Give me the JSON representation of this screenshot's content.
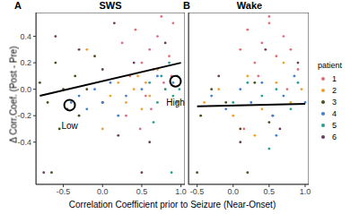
{
  "chart_data": [
    {
      "type": "scatter",
      "panel_label": "A",
      "title": "SWS",
      "x_label": "Correlation Coefficient prior to Seizure (Near-Onset)",
      "y_label": "Δ Corr.Coef. (Post - Pre)",
      "legend": "right",
      "legend_title": "patient",
      "grid": false,
      "xlim": [
        -0.85,
        1.05
      ],
      "ylim": [
        -0.72,
        0.58
      ],
      "xticks": [
        -0.5,
        {
          "value": 0,
          "label": "0.0"
        },
        0.5,
        {
          "value": 1,
          "label": "1.0"
        }
      ],
      "yticks": [
        -0.4,
        -0.2,
        {
          "value": 0,
          "label": "0.0"
        },
        0.2,
        0.4
      ],
      "series": [
        {
          "name": "1",
          "color": "#e07080",
          "x": [
            0.25,
            0.35,
            0.42,
            0.5,
            0.55,
            0.6,
            0.65,
            0.7,
            0.78,
            0.85,
            0.9,
            0.3,
            0.48,
            0.62,
            0.75,
            0.88
          ],
          "values": [
            0.35,
            0.1,
            0.45,
            0.2,
            -0.05,
            0.3,
            0.15,
            0.4,
            0.05,
            0.25,
            0.5,
            -0.2,
            -0.3,
            -0.15,
            0.55,
            0.1
          ]
        },
        {
          "name": "2",
          "color": "#f0a030",
          "x": [
            0.1,
            0.2,
            0.3,
            0.4,
            0.45,
            0.5,
            0.55,
            0.6,
            0.7,
            0.8,
            -0.2,
            0.0
          ],
          "values": [
            -0.05,
            0.05,
            -0.1,
            0.0,
            0.1,
            -0.15,
            0.05,
            -0.05,
            0.15,
            0.0,
            0.3,
            -0.3
          ]
        },
        {
          "name": "3",
          "color": "#4d4d1a",
          "x": [
            -0.8,
            -0.7,
            -0.6,
            -0.55,
            -0.5,
            -0.45,
            -0.35,
            -0.3,
            -0.2,
            -0.1,
            0.0,
            -0.65
          ],
          "values": [
            0.05,
            -0.1,
            0.2,
            -0.3,
            0.0,
            -0.15,
            0.1,
            -0.2,
            0.0,
            0.25,
            -0.1,
            -0.63
          ]
        },
        {
          "name": "4",
          "color": "#3f7fd0",
          "x": [
            -0.4,
            -0.3,
            -0.2,
            -0.1,
            0.0,
            0.1,
            0.2,
            0.3,
            0.5,
            0.7,
            0.9,
            0.95
          ],
          "values": [
            -0.1,
            -0.05,
            -0.15,
            0.0,
            -0.1,
            0.05,
            -0.2,
            -0.05,
            0.0,
            0.1,
            0.05,
            -0.1
          ]
        },
        {
          "name": "5",
          "color": "#2a9d8f",
          "x": [
            0.6,
            0.7,
            0.75,
            0.8,
            0.85,
            0.9,
            0.95,
            0.98,
            0.65,
            0.88
          ],
          "values": [
            0.05,
            -0.1,
            0.1,
            0.0,
            0.2,
            -0.05,
            0.1,
            0.0,
            -0.25,
            -0.63
          ]
        },
        {
          "name": "6",
          "color": "#6a3d5a",
          "x": [
            -0.6,
            -0.3,
            0.0,
            0.2,
            0.4,
            0.6,
            0.8,
            -0.75,
            0.15,
            0.5
          ],
          "values": [
            0.4,
            0.3,
            0.15,
            -0.35,
            0.2,
            -0.4,
            0.35,
            -0.63,
            0.5,
            -0.63
          ]
        }
      ],
      "fit_line": {
        "x": [
          -0.8,
          1.0
        ],
        "values": [
          -0.05,
          0.2
        ]
      },
      "annotations": [
        {
          "x": -0.42,
          "y": -0.12,
          "text": "Low"
        },
        {
          "x": 0.93,
          "y": 0.06,
          "text": "High"
        }
      ]
    },
    {
      "type": "scatter",
      "panel_label": "B",
      "title": "Wake",
      "grid": false,
      "tick_labels": "x",
      "xlim": [
        -0.62,
        1.05
      ],
      "ylim": [
        -0.72,
        0.58
      ],
      "xticks": [
        -0.5,
        {
          "value": 0,
          "label": "0.0"
        },
        0.5,
        {
          "value": 1,
          "label": "1.0"
        }
      ],
      "yticks": [
        -0.4,
        -0.2,
        {
          "value": 0,
          "label": "0.0"
        },
        0.2,
        0.4
      ],
      "series": [
        {
          "name": "1",
          "color": "#e07080",
          "x": [
            0.1,
            0.2,
            0.3,
            0.4,
            0.5,
            0.6,
            0.7,
            0.8,
            0.9,
            0.15,
            0.35,
            0.55,
            0.75,
            0.5
          ],
          "values": [
            0.3,
            0.45,
            0.2,
            0.35,
            0.5,
            0.25,
            0.4,
            0.3,
            0.15,
            -0.3,
            0.1,
            -0.2,
            0.0,
            0.55
          ]
        },
        {
          "name": "2",
          "color": "#f0a030",
          "x": [
            -0.4,
            -0.2,
            0.0,
            0.2,
            0.4,
            0.6,
            0.8,
            0.95,
            0.3,
            0.7
          ],
          "values": [
            -0.1,
            0.0,
            -0.2,
            0.1,
            -0.15,
            0.05,
            -0.1,
            0.0,
            -0.35,
            0.2
          ]
        },
        {
          "name": "3",
          "color": "#4d4d1a",
          "x": [
            -0.45,
            -0.3,
            -0.1,
            0.1,
            0.3,
            0.5,
            -0.5,
            0.2
          ],
          "values": [
            -0.2,
            0.0,
            -0.1,
            -0.3,
            0.05,
            -0.25,
            -0.63,
            -0.63
          ]
        },
        {
          "name": "4",
          "color": "#3f7fd0",
          "x": [
            -0.3,
            -0.1,
            0.1,
            0.25,
            0.4,
            0.55,
            0.7,
            0.85,
            1.0,
            0.6
          ],
          "values": [
            -0.05,
            -0.15,
            0.0,
            -0.1,
            0.05,
            -0.2,
            -0.05,
            0.1,
            -0.1,
            -0.35
          ]
        },
        {
          "name": "5",
          "color": "#2a9d8f",
          "x": [
            0.0,
            0.2,
            0.4,
            0.6,
            0.8,
            0.9,
            0.5
          ],
          "values": [
            -0.1,
            0.05,
            -0.05,
            0.0,
            -0.15,
            0.05,
            -0.45
          ]
        },
        {
          "name": "6",
          "color": "#6a3d5a",
          "x": [
            -0.2,
            0.1,
            0.45,
            0.65,
            0.9
          ],
          "values": [
            0.1,
            -0.4,
            0.3,
            -0.3,
            0.2
          ]
        }
      ],
      "fit_line": {
        "x": [
          -0.5,
          1.0
        ],
        "values": [
          -0.13,
          -0.11
        ]
      }
    }
  ]
}
